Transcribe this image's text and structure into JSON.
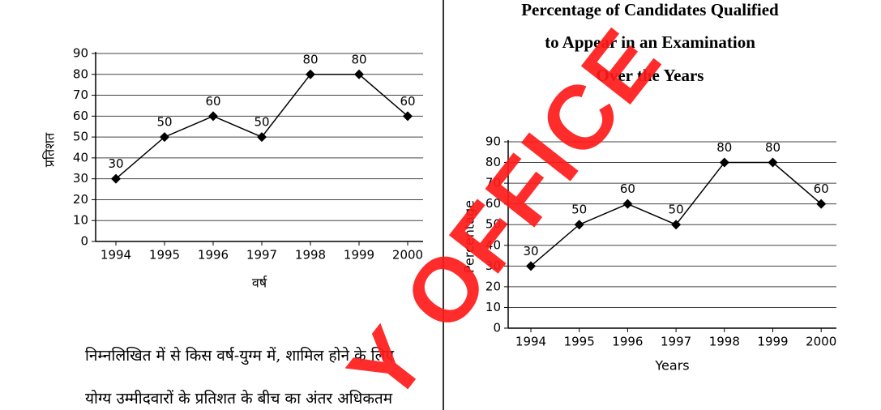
{
  "chart_data": [
    {
      "type": "line",
      "y_label": "प्रतिशत",
      "x_label": "वर्ष",
      "categories": [
        "1994",
        "1995",
        "1996",
        "1997",
        "1998",
        "1999",
        "2000"
      ],
      "values": [
        30,
        50,
        60,
        50,
        80,
        80,
        60
      ],
      "color": "#000000",
      "ylim": [
        0,
        90
      ],
      "yticks": [
        0,
        10,
        20,
        30,
        40,
        50,
        60,
        70,
        80,
        90
      ],
      "grid": true,
      "marker": "diamond"
    },
    {
      "type": "line",
      "title": [
        "Percentage of Candidates Qualified",
        "to Appear in an Examination",
        "Over the Years"
      ],
      "y_label": "Percentage",
      "x_label": "Years",
      "categories": [
        "1994",
        "1995",
        "1996",
        "1997",
        "1998",
        "1999",
        "2000"
      ],
      "values": [
        30,
        50,
        60,
        50,
        80,
        80,
        60
      ],
      "color": "#000000",
      "ylim": [
        0,
        90
      ],
      "yticks": [
        0,
        10,
        20,
        30,
        40,
        50,
        60,
        70,
        80,
        90
      ],
      "grid": true,
      "marker": "diamond"
    }
  ],
  "text": [
    "निम्नलिखित में से किस वर्ष-युग्म में, शामिल होने के लिए",
    "योग्य उम्मीदवारों के प्रतिशत के बीच का अंतर अधिकतम"
  ],
  "watermark": "Y OFFICE"
}
